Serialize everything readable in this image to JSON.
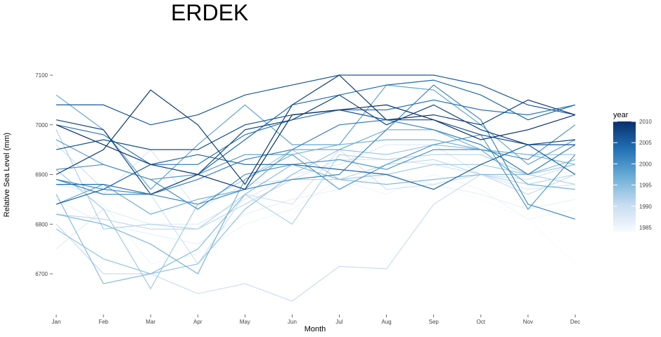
{
  "chart_data": {
    "type": "line",
    "title": "ERDEK",
    "xlabel": "Month",
    "ylabel": "Relative Sea Level (mm)",
    "categories": [
      "Jan",
      "Feb",
      "Mar",
      "Apr",
      "May",
      "Jun",
      "Jul",
      "Aug",
      "Sep",
      "Oct",
      "Nov",
      "Dec"
    ],
    "ylim": [
      6630,
      7110
    ],
    "yticks": [
      6700,
      6800,
      6900,
      7000,
      7100
    ],
    "grid": false,
    "legend": {
      "title": "year",
      "position": "right",
      "type": "colorbar",
      "range": [
        1984,
        2010
      ],
      "ticks": [
        1985,
        1990,
        1995,
        2000,
        2005,
        2010
      ],
      "colors": [
        "#f7fbff",
        "#c6dbef",
        "#6baed6",
        "#2171b5",
        "#08306b"
      ]
    },
    "series": [
      {
        "year": 1984,
        "values": [
          6900,
          6880,
          6860,
          6880,
          6870,
          6890,
          6900,
          6890,
          6880,
          6850,
          6810,
          6720
        ]
      },
      {
        "year": 1985,
        "values": [
          6880,
          6840,
          6720,
          6740,
          6800,
          6830,
          6890,
          6860,
          6900,
          6870,
          6810,
          6830
        ]
      },
      {
        "year": 1986,
        "values": [
          6850,
          6800,
          6780,
          6760,
          6820,
          6850,
          6870,
          6900,
          6880,
          6860,
          6830,
          6850
        ]
      },
      {
        "year": 1987,
        "values": [
          6750,
          6830,
          6800,
          6800,
          6850,
          6900,
          6920,
          6960,
          6960,
          6900,
          6880,
          6900
        ]
      },
      {
        "year": 1988,
        "values": [
          6880,
          6860,
          6950,
          6830,
          6880,
          6890,
          6930,
          6930,
          6920,
          6900,
          6870,
          6880
        ]
      },
      {
        "year": 1989,
        "values": [
          6960,
          6870,
          6860,
          6720,
          6860,
          6840,
          6950,
          6870,
          6880,
          6900,
          6890,
          6920
        ]
      },
      {
        "year": 1990,
        "values": [
          6800,
          6700,
          6700,
          6660,
          6680,
          6645,
          6715,
          6710,
          6840,
          6900,
          6860,
          6900
        ]
      },
      {
        "year": 1991,
        "values": [
          6820,
          6810,
          6790,
          6790,
          6840,
          6890,
          6890,
          6920,
          6930,
          6900,
          6880,
          6900
        ]
      },
      {
        "year": 1992,
        "values": [
          6990,
          6790,
          6800,
          6790,
          6860,
          6800,
          6940,
          6930,
          6940,
          6940,
          6900,
          6880
        ]
      },
      {
        "year": 1993,
        "values": [
          6910,
          6830,
          6670,
          6840,
          6890,
          6950,
          6890,
          6900,
          6920,
          6920,
          6900,
          6920
        ]
      },
      {
        "year": 1994,
        "values": [
          6790,
          6730,
          6700,
          6720,
          6830,
          6900,
          6950,
          6940,
          6960,
          6950,
          6940,
          6940
        ]
      },
      {
        "year": 1995,
        "values": [
          6860,
          6680,
          6700,
          6750,
          6860,
          6920,
          6890,
          6880,
          6890,
          6900,
          6900,
          6930
        ]
      },
      {
        "year": 1996,
        "values": [
          6820,
          6800,
          6760,
          6700,
          6890,
          6940,
          6960,
          6970,
          6970,
          6950,
          6940,
          6920
        ]
      },
      {
        "year": 1997,
        "values": [
          6840,
          6880,
          6820,
          6850,
          6870,
          6950,
          6950,
          6990,
          6990,
          6950,
          6880,
          6870
        ]
      },
      {
        "year": 1998,
        "values": [
          7060,
          6990,
          6870,
          6960,
          7040,
          6960,
          6960,
          7080,
          7070,
          7000,
          6920,
          6970
        ]
      },
      {
        "year": 1999,
        "values": [
          6970,
          6920,
          6890,
          6900,
          6940,
          6940,
          6870,
          6920,
          6960,
          6980,
          6830,
          6940
        ]
      },
      {
        "year": 2000,
        "values": [
          6910,
          6920,
          6890,
          6830,
          6900,
          6920,
          6930,
          6910,
          6950,
          6950,
          6930,
          7000
        ]
      },
      {
        "year": 2001,
        "values": [
          6890,
          6870,
          6860,
          6840,
          6870,
          6890,
          6900,
          6990,
          7080,
          7010,
          6840,
          6810
        ]
      },
      {
        "year": 2002,
        "values": [
          6890,
          6860,
          6860,
          6890,
          6930,
          6950,
          7000,
          7010,
          6990,
          6960,
          6900,
          6960
        ]
      },
      {
        "year": 2003,
        "values": [
          7000,
          6980,
          6920,
          6920,
          6980,
          7010,
          7030,
          7030,
          7050,
          7030,
          7020,
          7040
        ]
      },
      {
        "year": 2004,
        "values": [
          6880,
          6880,
          6860,
          6900,
          6970,
          7040,
          7060,
          7080,
          7090,
          7060,
          7010,
          7040
        ]
      },
      {
        "year": 2005,
        "values": [
          6840,
          6870,
          6920,
          6940,
          6920,
          6920,
          6910,
          6900,
          6870,
          6920,
          6960,
          6900
        ]
      },
      {
        "year": 2006,
        "values": [
          7040,
          7040,
          7000,
          7020,
          7060,
          7080,
          7100,
          7100,
          7100,
          7080,
          7040,
          7020
        ]
      },
      {
        "year": 2007,
        "values": [
          6950,
          6970,
          6950,
          6950,
          7000,
          7020,
          7030,
          7010,
          7010,
          6980,
          6960,
          6960
        ]
      },
      {
        "year": 2008,
        "values": [
          7010,
          6990,
          6860,
          6900,
          6990,
          7010,
          7060,
          7000,
          7040,
          6990,
          6960,
          6970
        ]
      },
      {
        "year": 2009,
        "values": [
          6900,
          6950,
          7070,
          7000,
          6880,
          7040,
          7100,
          7010,
          7020,
          7000,
          7050,
          7020
        ]
      },
      {
        "year": 2010,
        "values": [
          7000,
          6960,
          6920,
          6900,
          6870,
          7020,
          7030,
          7040,
          7010,
          6970,
          6990,
          7020
        ]
      }
    ]
  }
}
